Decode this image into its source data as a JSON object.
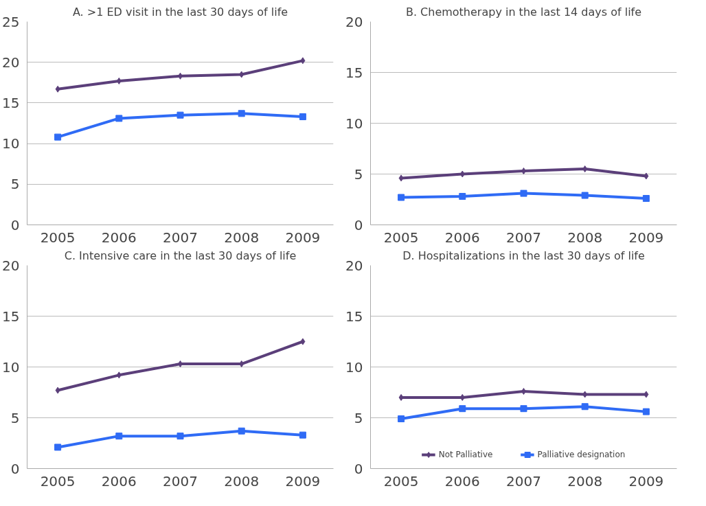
{
  "chart_data": [
    {
      "type": "line",
      "title": "A. >1 ED visit in the last 30 days of life",
      "categories": [
        "2005",
        "2006",
        "2007",
        "2008",
        "2009"
      ],
      "ylim": [
        0,
        25
      ],
      "yticks": [
        0,
        5,
        10,
        15,
        20,
        25
      ],
      "grid": "y",
      "legend": false,
      "series": [
        {
          "color": "#5b3f7a",
          "marker": "diamond",
          "values": [
            16.7,
            17.7,
            18.3,
            18.5,
            20.2
          ]
        },
        {
          "color": "#2f6bf5",
          "marker": "square",
          "values": [
            10.8,
            13.1,
            13.5,
            13.7,
            13.3
          ]
        }
      ]
    },
    {
      "type": "line",
      "title": "B. Chemotherapy in the last 14 days of life",
      "categories": [
        "2005",
        "2006",
        "2007",
        "2008",
        "2009"
      ],
      "ylim": [
        0,
        20
      ],
      "yticks": [
        0,
        5,
        10,
        15,
        20
      ],
      "grid": "y",
      "legend": false,
      "series": [
        {
          "color": "#5b3f7a",
          "marker": "diamond",
          "values": [
            4.6,
            5.0,
            5.3,
            5.5,
            4.8
          ]
        },
        {
          "color": "#2f6bf5",
          "marker": "square",
          "values": [
            2.7,
            2.8,
            3.1,
            2.9,
            2.6
          ]
        }
      ]
    },
    {
      "type": "line",
      "title": "C. Intensive care in the last 30 days of life",
      "categories": [
        "2005",
        "2006",
        "2007",
        "2008",
        "2009"
      ],
      "ylim": [
        0,
        20
      ],
      "yticks": [
        0,
        5,
        10,
        15,
        20
      ],
      "grid": "y",
      "legend": false,
      "series": [
        {
          "color": "#5b3f7a",
          "marker": "diamond",
          "values": [
            7.7,
            9.2,
            10.3,
            10.3,
            12.5
          ]
        },
        {
          "color": "#2f6bf5",
          "marker": "square",
          "values": [
            2.1,
            3.2,
            3.2,
            3.7,
            3.3
          ]
        }
      ]
    },
    {
      "type": "line",
      "title": "D. Hospitalizations in the last 30 days of life",
      "categories": [
        "2005",
        "2006",
        "2007",
        "2008",
        "2009"
      ],
      "ylim": [
        0,
        20
      ],
      "yticks": [
        0,
        5,
        10,
        15,
        20
      ],
      "grid": "y",
      "legend": "bottom",
      "series": [
        {
          "name": "Not Palliative",
          "color": "#5b3f7a",
          "marker": "diamond",
          "values": [
            7.0,
            7.0,
            7.6,
            7.3,
            7.3
          ]
        },
        {
          "name": "Palliative designation",
          "color": "#2f6bf5",
          "marker": "square",
          "values": [
            4.9,
            5.9,
            5.9,
            6.1,
            5.6
          ]
        }
      ]
    }
  ]
}
